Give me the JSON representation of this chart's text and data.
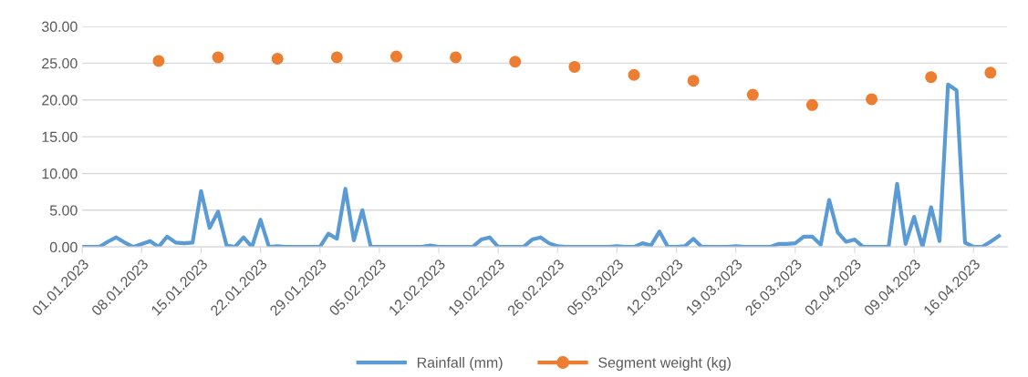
{
  "chart_data": {
    "type": "line",
    "xlim": [
      "2023-01-01",
      "2023-04-20"
    ],
    "xticks": [
      {
        "value": "2023-01-01",
        "label": "01.01.2023"
      },
      {
        "value": "2023-01-08",
        "label": "08.01.2023"
      },
      {
        "value": "2023-01-15",
        "label": "15.01.2023"
      },
      {
        "value": "2023-01-22",
        "label": "22.01.2023"
      },
      {
        "value": "2023-01-29",
        "label": "29.01.2023"
      },
      {
        "value": "2023-02-05",
        "label": "05.02.2023"
      },
      {
        "value": "2023-02-12",
        "label": "12.02.2023"
      },
      {
        "value": "2023-02-19",
        "label": "19.02.2023"
      },
      {
        "value": "2023-02-26",
        "label": "26.02.2023"
      },
      {
        "value": "2023-03-05",
        "label": "05.03.2023"
      },
      {
        "value": "2023-03-12",
        "label": "12.03.2023"
      },
      {
        "value": "2023-03-19",
        "label": "19.03.2023"
      },
      {
        "value": "2023-03-26",
        "label": "26.03.2023"
      },
      {
        "value": "2023-04-02",
        "label": "02.04.2023"
      },
      {
        "value": "2023-04-09",
        "label": "09.04.2023"
      },
      {
        "value": "2023-04-16",
        "label": "16.04.2023"
      }
    ],
    "ylim": [
      0,
      30
    ],
    "yticks": [
      {
        "value": 0,
        "label": "0.00"
      },
      {
        "value": 5,
        "label": "5.00"
      },
      {
        "value": 10,
        "label": "10.00"
      },
      {
        "value": 15,
        "label": "15.00"
      },
      {
        "value": 20,
        "label": "20.00"
      },
      {
        "value": 25,
        "label": "25.00"
      },
      {
        "value": 30,
        "label": "30.00"
      }
    ],
    "grid": "y",
    "legend": "bottom",
    "series": [
      {
        "name": "Rainfall (mm)",
        "color": "#5b9bd5",
        "marker": "none",
        "line_style": "solid",
        "x": [
          "2023-01-01",
          "2023-01-02",
          "2023-01-03",
          "2023-01-04",
          "2023-01-05",
          "2023-01-06",
          "2023-01-07",
          "2023-01-08",
          "2023-01-09",
          "2023-01-10",
          "2023-01-11",
          "2023-01-12",
          "2023-01-13",
          "2023-01-14",
          "2023-01-15",
          "2023-01-16",
          "2023-01-17",
          "2023-01-18",
          "2023-01-19",
          "2023-01-20",
          "2023-01-21",
          "2023-01-22",
          "2023-01-23",
          "2023-01-24",
          "2023-01-25",
          "2023-01-26",
          "2023-01-27",
          "2023-01-28",
          "2023-01-29",
          "2023-01-30",
          "2023-01-31",
          "2023-02-01",
          "2023-02-02",
          "2023-02-03",
          "2023-02-04",
          "2023-02-05",
          "2023-02-06",
          "2023-02-07",
          "2023-02-08",
          "2023-02-09",
          "2023-02-10",
          "2023-02-11",
          "2023-02-12",
          "2023-02-13",
          "2023-02-14",
          "2023-02-15",
          "2023-02-16",
          "2023-02-17",
          "2023-02-18",
          "2023-02-19",
          "2023-02-20",
          "2023-02-21",
          "2023-02-22",
          "2023-02-23",
          "2023-02-24",
          "2023-02-25",
          "2023-02-26",
          "2023-02-27",
          "2023-02-28",
          "2023-03-01",
          "2023-03-02",
          "2023-03-03",
          "2023-03-04",
          "2023-03-05",
          "2023-03-06",
          "2023-03-07",
          "2023-03-08",
          "2023-03-09",
          "2023-03-10",
          "2023-03-11",
          "2023-03-12",
          "2023-03-13",
          "2023-03-14",
          "2023-03-15",
          "2023-03-16",
          "2023-03-17",
          "2023-03-18",
          "2023-03-19",
          "2023-03-20",
          "2023-03-21",
          "2023-03-22",
          "2023-03-23",
          "2023-03-24",
          "2023-03-25",
          "2023-03-26",
          "2023-03-27",
          "2023-03-28",
          "2023-03-29",
          "2023-03-30",
          "2023-03-31",
          "2023-04-01",
          "2023-04-02",
          "2023-04-03",
          "2023-04-04",
          "2023-04-05",
          "2023-04-06",
          "2023-04-07",
          "2023-04-08",
          "2023-04-09",
          "2023-04-10",
          "2023-04-11",
          "2023-04-12",
          "2023-04-13",
          "2023-04-14",
          "2023-04-15",
          "2023-04-16",
          "2023-04-17",
          "2023-04-18",
          "2023-04-19"
        ],
        "values": [
          0,
          0,
          0,
          0.7,
          1.3,
          0.6,
          0,
          0.4,
          0.8,
          0,
          1.4,
          0.6,
          0.5,
          0.6,
          7.6,
          2.6,
          4.8,
          0.2,
          0,
          1.3,
          0,
          3.7,
          0,
          0.1,
          0,
          0,
          0,
          0,
          0,
          1.8,
          1.1,
          7.9,
          0.9,
          5.0,
          0,
          0,
          0,
          0,
          0,
          0,
          0,
          0.2,
          0,
          0,
          0,
          0,
          0,
          1.0,
          1.3,
          0,
          0,
          0,
          0,
          1.0,
          1.3,
          0.5,
          0.1,
          0,
          0,
          0,
          0,
          0,
          0,
          0.1,
          0,
          0,
          0.5,
          0.2,
          2.1,
          0,
          0,
          0.1,
          1.1,
          0,
          0,
          0,
          0,
          0.1,
          0,
          0,
          0,
          0,
          0.4,
          0.4,
          0.5,
          1.4,
          1.4,
          0.3,
          6.4,
          2.0,
          0.7,
          1.0,
          0,
          0,
          0,
          0,
          8.6,
          0.4,
          4.1,
          0,
          5.4,
          0.8,
          22.1,
          21.3,
          0.6,
          0,
          0,
          0.7,
          1.5
        ]
      },
      {
        "name": "Segment weight (kg)",
        "type": "scatter",
        "color": "#ed7d31",
        "marker": "circle",
        "x": [
          "2023-01-10",
          "2023-01-17",
          "2023-01-24",
          "2023-01-31",
          "2023-02-07",
          "2023-02-14",
          "2023-02-21",
          "2023-02-28",
          "2023-03-07",
          "2023-03-14",
          "2023-03-21",
          "2023-03-28",
          "2023-04-04",
          "2023-04-11",
          "2023-04-18"
        ],
        "values": [
          25.3,
          25.8,
          25.6,
          25.8,
          25.9,
          25.8,
          25.2,
          24.5,
          23.4,
          22.6,
          20.7,
          19.3,
          20.1,
          23.1,
          23.7
        ]
      }
    ]
  }
}
